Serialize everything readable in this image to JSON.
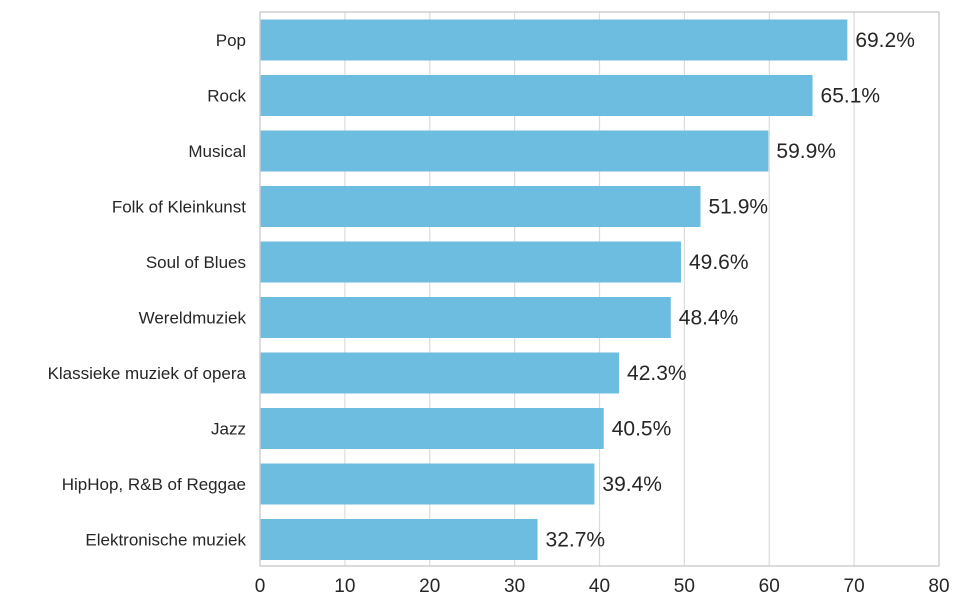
{
  "chart_data": {
    "type": "bar",
    "orientation": "horizontal",
    "title": "",
    "xlabel": "",
    "ylabel": "",
    "categories": [
      "Pop",
      "Rock",
      "Musical",
      "Folk of Kleinkunst",
      "Soul of Blues",
      "Wereldmuziek",
      "Klassieke muziek of opera",
      "Jazz",
      "HipHop, R&B of Reggae",
      "Elektronische muziek"
    ],
    "values": [
      69.2,
      65.1,
      59.9,
      51.9,
      49.6,
      48.4,
      42.3,
      40.5,
      39.4,
      32.7
    ],
    "value_labels": [
      "69.2%",
      "65.1%",
      "59.9%",
      "51.9%",
      "49.6%",
      "48.4%",
      "42.3%",
      "40.5%",
      "39.4%",
      "32.7%"
    ],
    "xlim": [
      0,
      80
    ],
    "xticks": [
      0,
      10,
      20,
      30,
      40,
      50,
      60,
      70,
      80
    ],
    "xtick_labels": [
      "0",
      "10",
      "20",
      "30",
      "40",
      "50",
      "60",
      "70",
      "80"
    ],
    "grid": "vertical",
    "legend": "none",
    "bar_color": "#6dbde0",
    "grid_color": "#dcdcdc",
    "frame_color": "#cccccc"
  }
}
